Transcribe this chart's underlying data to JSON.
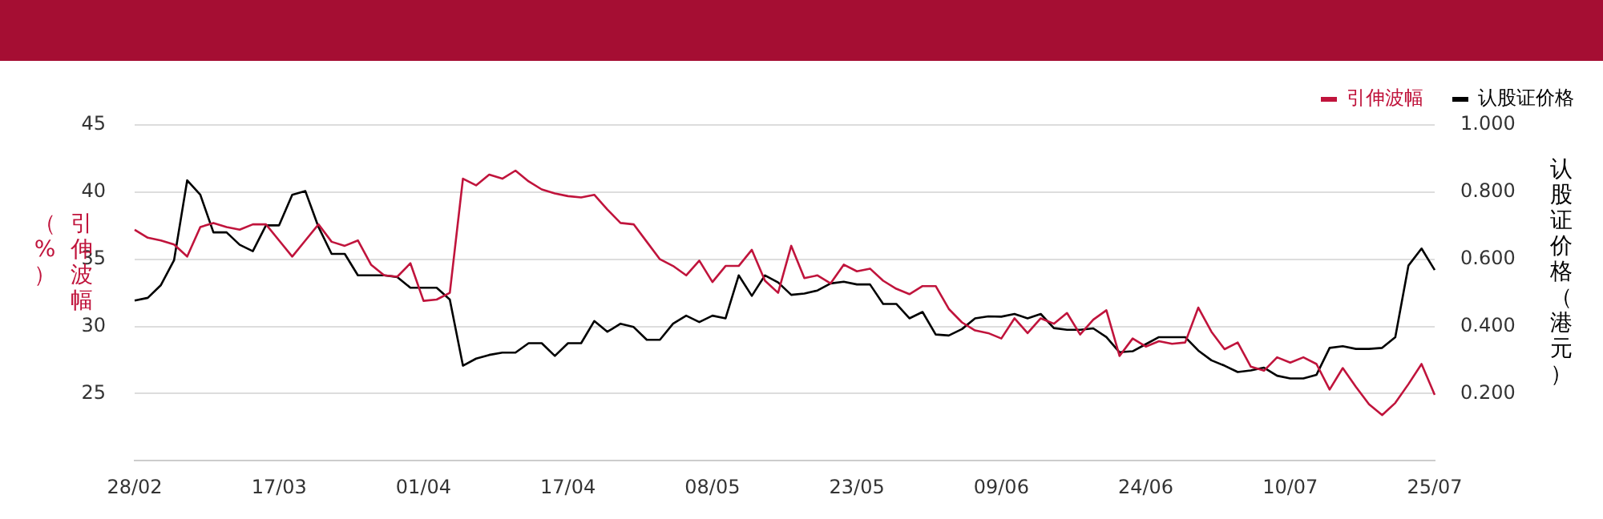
{
  "chart_data": {
    "type": "line",
    "categories": [
      "28/02",
      null,
      null,
      null,
      null,
      null,
      null,
      null,
      null,
      null,
      null,
      "17/03",
      null,
      null,
      null,
      null,
      null,
      null,
      null,
      null,
      null,
      null,
      "01/04",
      null,
      null,
      null,
      null,
      null,
      null,
      null,
      null,
      null,
      null,
      "17/04",
      null,
      null,
      null,
      null,
      null,
      null,
      null,
      null,
      null,
      null,
      "08/05",
      null,
      null,
      null,
      null,
      null,
      null,
      null,
      null,
      null,
      null,
      "23/05",
      null,
      null,
      null,
      null,
      null,
      null,
      null,
      null,
      null,
      null,
      "09/06",
      null,
      null,
      null,
      null,
      null,
      null,
      null,
      null,
      null,
      null,
      "24/06",
      null,
      null,
      null,
      null,
      null,
      null,
      null,
      null,
      null,
      null,
      "10/07",
      null,
      null,
      null,
      null,
      null,
      null,
      null,
      null,
      null,
      null,
      "25/07"
    ],
    "series": [
      {
        "name": "引伸波幅",
        "color": "#c0143c",
        "values": [
          37.2,
          36.6,
          36.4,
          36.1,
          35.2,
          37.4,
          37.7,
          37.4,
          37.2,
          37.6,
          37.6,
          36.4,
          35.2,
          36.4,
          37.6,
          36.3,
          36.0,
          36.4,
          34.6,
          33.8,
          33.7,
          34.7,
          31.9,
          32.0,
          32.5,
          41.0,
          40.5,
          41.3,
          41.0,
          41.6,
          40.8,
          40.2,
          39.9,
          39.7,
          39.6,
          39.8,
          38.7,
          37.7,
          37.6,
          36.3,
          35.0,
          34.5,
          33.8,
          34.9,
          33.3,
          34.5,
          34.5,
          35.7,
          33.4,
          32.5,
          36.0,
          33.6,
          33.8,
          33.2,
          34.6,
          34.1,
          34.3,
          33.4,
          32.8,
          32.4,
          33.0,
          33.0,
          31.3,
          30.3,
          29.7,
          29.5,
          29.1,
          30.6,
          29.5,
          30.6,
          30.2,
          31.0,
          29.4,
          30.5,
          31.2,
          27.8,
          29.1,
          28.5,
          28.9,
          28.7,
          28.8,
          31.4,
          29.6,
          28.3,
          28.8,
          27.0,
          26.7,
          27.7,
          27.3,
          27.7,
          27.2,
          25.3,
          26.9,
          25.5,
          24.2,
          23.4,
          24.3,
          25.7,
          27.2,
          24.9
        ]
      },
      {
        "name": "认股证价格",
        "color": "#000000",
        "axis": "y2",
        "values": [
          0.477,
          0.485,
          0.523,
          0.597,
          0.835,
          0.792,
          0.68,
          0.68,
          0.643,
          0.624,
          0.701,
          0.701,
          0.792,
          0.803,
          0.696,
          0.616,
          0.616,
          0.552,
          0.552,
          0.552,
          0.547,
          0.515,
          0.515,
          0.515,
          0.48,
          0.283,
          0.304,
          0.315,
          0.322,
          0.322,
          0.35,
          0.35,
          0.312,
          0.35,
          0.35,
          0.416,
          0.384,
          0.408,
          0.398,
          0.36,
          0.36,
          0.408,
          0.432,
          0.413,
          0.432,
          0.424,
          0.552,
          0.491,
          0.552,
          0.531,
          0.494,
          0.498,
          0.507,
          0.528,
          0.533,
          0.525,
          0.525,
          0.467,
          0.467,
          0.424,
          0.443,
          0.376,
          0.373,
          0.392,
          0.424,
          0.43,
          0.429,
          0.437,
          0.424,
          0.437,
          0.395,
          0.39,
          0.39,
          0.394,
          0.368,
          0.323,
          0.326,
          0.347,
          0.368,
          0.368,
          0.368,
          0.328,
          0.299,
          0.283,
          0.264,
          0.269,
          0.277,
          0.253,
          0.245,
          0.245,
          0.256,
          0.336,
          0.341,
          0.333,
          0.333,
          0.336,
          0.368,
          0.581,
          0.632,
          0.568
        ]
      }
    ],
    "ylabel": "引伸波幅（%）",
    "y2label": "认股证价格（港元）",
    "ylim": [
      20,
      45
    ],
    "yticks": [
      25,
      30,
      35,
      40,
      45
    ],
    "y2lim": [
      0,
      1
    ],
    "y2ticks": [
      {
        "value": 0.2,
        "label": "0.200"
      },
      {
        "value": 0.4,
        "label": "0.400"
      },
      {
        "value": 0.6,
        "label": "0.600"
      },
      {
        "value": 0.8,
        "label": "0.800"
      },
      {
        "value": 1,
        "label": "1.000"
      }
    ],
    "grid": "y",
    "legend": "top right"
  }
}
